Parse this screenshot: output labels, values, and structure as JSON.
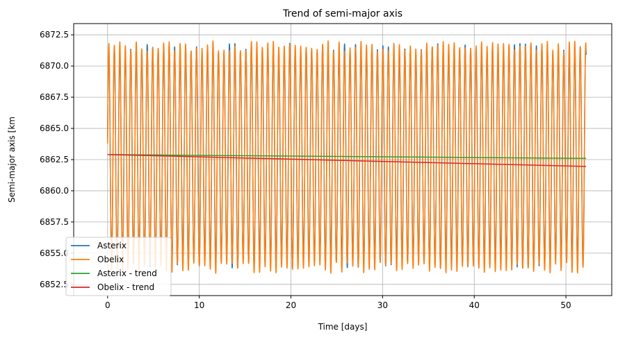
{
  "chart_data": {
    "type": "line",
    "title": "Trend of semi-major axis",
    "xlabel": "Time [days]",
    "ylabel": "Semi-major axis [km",
    "xlim": [
      -3.7,
      55.0
    ],
    "ylim": [
      6851.6,
      6873.4
    ],
    "x_ticks": [
      0,
      10,
      20,
      30,
      40,
      50
    ],
    "y_ticks": [
      6852.5,
      6855.0,
      6857.5,
      6860.0,
      6862.5,
      6865.0,
      6867.5,
      6870.0,
      6872.5
    ],
    "grid": true,
    "legend_position": "bottom-left",
    "oscillation": {
      "x_start": 0,
      "x_end": 52.2,
      "period_days": 0.598,
      "asterix_mean": 6862.8,
      "asterix_amplitude": 8.6,
      "obelix_mean": 6862.7,
      "obelix_amplitude": 8.9
    },
    "series": [
      {
        "name": "Asterix",
        "color": "#1f77b4",
        "kind": "oscillation"
      },
      {
        "name": "Obelix",
        "color": "#ff7f0e",
        "kind": "oscillation"
      },
      {
        "name": "Asterix - trend",
        "color": "#2ca02c",
        "kind": "trend",
        "x": [
          0,
          52.2
        ],
        "y": [
          6862.9,
          6862.6
        ]
      },
      {
        "name": "Obelix - trend",
        "color": "#d62728",
        "kind": "trend",
        "x": [
          0,
          52.2
        ],
        "y": [
          6862.9,
          6861.95
        ]
      }
    ]
  }
}
